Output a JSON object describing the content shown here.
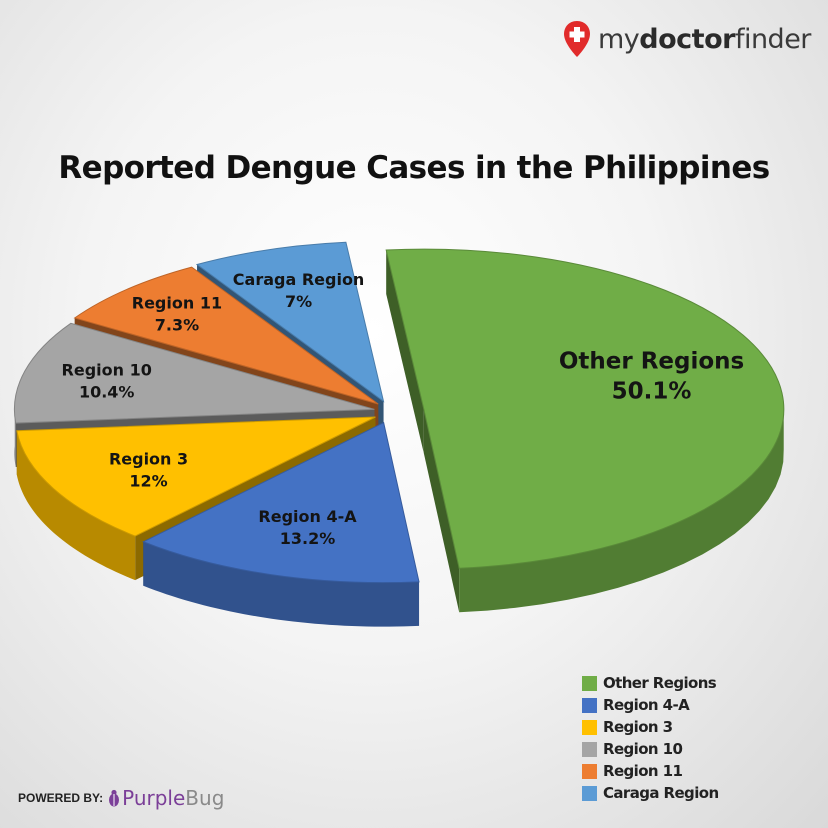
{
  "branding": {
    "logo_text_regular_1": "my",
    "logo_text_bold": "doctor",
    "logo_text_regular_2": "finder",
    "powered_label": "POWERED BY:",
    "powered_brand_1": "Purple",
    "powered_brand_2": "Bug"
  },
  "chart_data": {
    "type": "pie",
    "style": "3d-exploded",
    "title": "Reported Dengue Cases in the Philippines",
    "slices": [
      {
        "name": "Other Regions",
        "value": 50.1,
        "label": "50.1%",
        "color": "#70ad47"
      },
      {
        "name": "Region 4-A",
        "value": 13.2,
        "label": "13.2%",
        "color": "#4472c4"
      },
      {
        "name": "Region 3",
        "value": 12,
        "label": "12%",
        "color": "#ffc000"
      },
      {
        "name": "Region 10",
        "value": 10.4,
        "label": "10.4%",
        "color": "#a5a5a5"
      },
      {
        "name": "Region 11",
        "value": 7.3,
        "label": "7.3%",
        "color": "#ed7d31"
      },
      {
        "name": "Caraga Region",
        "value": 7,
        "label": "7%",
        "color": "#5b9bd5"
      }
    ],
    "legend_position": "bottom-right"
  }
}
